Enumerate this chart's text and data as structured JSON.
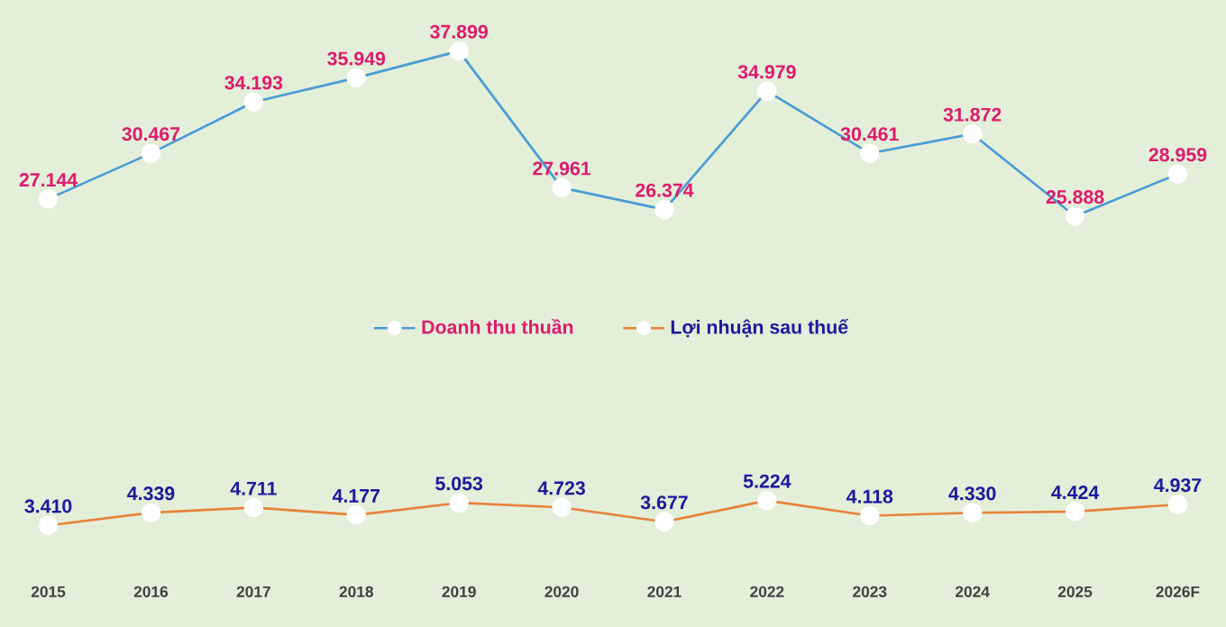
{
  "chart_data": {
    "type": "line",
    "categories": [
      "2015",
      "2016",
      "2017",
      "2018",
      "2019",
      "2020",
      "2021",
      "2022",
      "2023",
      "2024",
      "2025",
      "2026F"
    ],
    "series": [
      {
        "name": "Doanh thu thuần",
        "color": "#4a9bd4",
        "values": [
          27.144,
          30.467,
          34.193,
          35.949,
          37.899,
          27.961,
          26.374,
          34.979,
          30.461,
          31.872,
          25.888,
          28.959
        ],
        "value_labels": [
          "27.144",
          "30.467",
          "34.193",
          "35.949",
          "37.899",
          "27.961",
          "26.374",
          "34.979",
          "30.461",
          "31.872",
          "25.888",
          "28.959"
        ]
      },
      {
        "name": "Lợi nhuận sau thuế",
        "color": "#e8823a",
        "values": [
          3.41,
          4.339,
          4.711,
          4.177,
          5.053,
          4.723,
          3.677,
          5.224,
          4.118,
          4.33,
          4.424,
          4.937
        ],
        "value_labels": [
          "3.410",
          "4.339",
          "4.711",
          "4.177",
          "5.053",
          "4.723",
          "3.677",
          "5.224",
          "4.118",
          "4.330",
          "4.424",
          "4.937"
        ]
      }
    ],
    "tick_labels": "x",
    "legend": "center",
    "marker": "circle",
    "line_style": "solid"
  }
}
